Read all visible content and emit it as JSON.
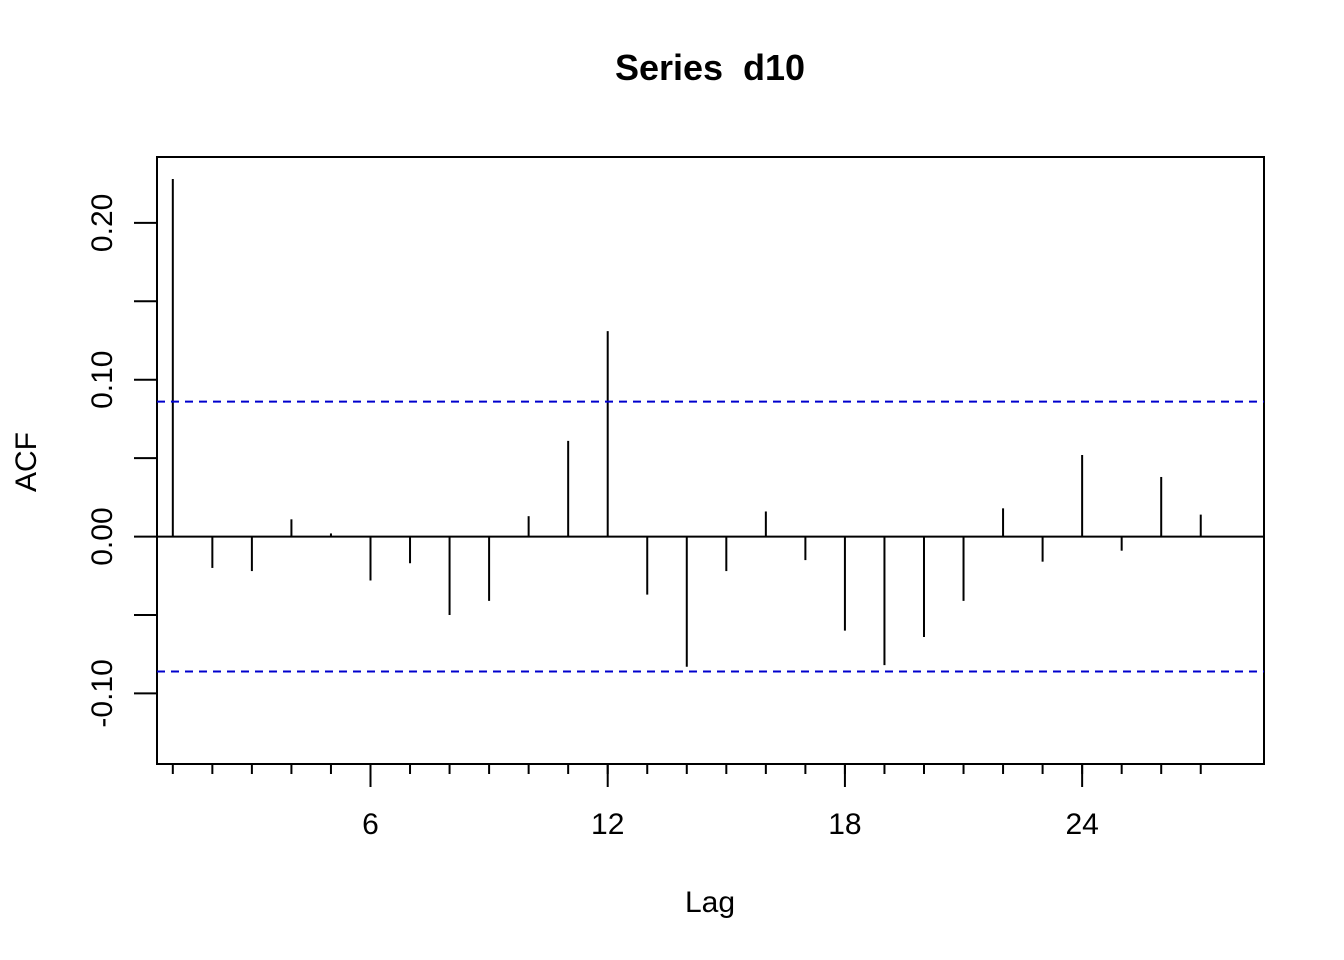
{
  "chart_data": {
    "type": "bar",
    "title": "Series  d10",
    "xlabel": "Lag",
    "ylabel": "ACF",
    "xlim": [
      0.6,
      28.6
    ],
    "ylim": [
      -0.145,
      0.242
    ],
    "x_ticks": [
      6,
      12,
      18,
      24
    ],
    "y_ticks": [
      -0.1,
      -0.05,
      0.0,
      0.05,
      0.1,
      0.15,
      0.2
    ],
    "y_tick_labels": [
      "-0.10",
      "",
      "0.00",
      "",
      "0.10",
      "",
      "0.20"
    ],
    "lags": [
      1,
      2,
      3,
      4,
      5,
      6,
      7,
      8,
      9,
      10,
      11,
      12,
      13,
      14,
      15,
      16,
      17,
      18,
      19,
      20,
      21,
      22,
      23,
      24,
      25,
      26,
      27
    ],
    "values": [
      0.228,
      -0.02,
      -0.022,
      0.011,
      0.002,
      -0.028,
      -0.017,
      -0.05,
      -0.041,
      0.013,
      0.061,
      0.131,
      -0.037,
      -0.083,
      -0.022,
      0.016,
      -0.015,
      -0.06,
      -0.082,
      -0.064,
      -0.041,
      0.018,
      -0.016,
      0.052,
      -0.009,
      0.038,
      0.014
    ],
    "confidence_bound": 0.086,
    "colors": {
      "bars": "#000000",
      "confidence": "#0000cd",
      "zero_line": "#000000"
    },
    "grid": false
  }
}
